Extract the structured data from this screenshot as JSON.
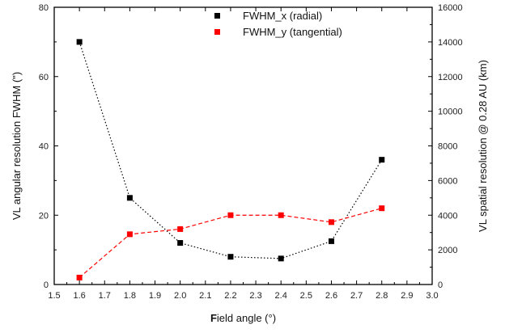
{
  "chart_data": {
    "type": "line",
    "xlabel": "Field angle (°)",
    "xlabel_parts": {
      "bold": "F",
      "rest": "ield angle (°)"
    },
    "ylabel_left": "VL angular resolution FWHM (\")",
    "ylabel_right": "VL spatial resolution @ 0.28 AU (km)",
    "xlim": [
      1.5,
      3.0
    ],
    "xticks": [
      "1.5",
      "1.6",
      "1.7",
      "1.8",
      "1.9",
      "2.0",
      "2.1",
      "2.2",
      "2.3",
      "2.4",
      "2.5",
      "2.6",
      "2.7",
      "2.8",
      "2.9",
      "3.0"
    ],
    "ylim_left": [
      0,
      80
    ],
    "yticks_left": [
      "0",
      "20",
      "40",
      "60",
      "80"
    ],
    "ylim_right": [
      0,
      16000
    ],
    "yticks_right": [
      "0",
      "2000",
      "4000",
      "6000",
      "8000",
      "10000",
      "12000",
      "14000",
      "16000"
    ],
    "grid": false,
    "legend_position": "top-center",
    "series": [
      {
        "name": "FWHM_x (radial)",
        "color": "#000000",
        "line_style": "dotted",
        "x": [
          1.6,
          1.8,
          2.0,
          2.2,
          2.4,
          2.6,
          2.8
        ],
        "y": [
          70,
          25,
          12,
          8,
          7.5,
          12.5,
          36
        ]
      },
      {
        "name": "FWHM_y (tangential)",
        "color": "#ff0000",
        "line_style": "dashed",
        "x": [
          1.6,
          1.8,
          2.0,
          2.2,
          2.4,
          2.6,
          2.8
        ],
        "y": [
          2,
          14.5,
          16,
          20,
          20,
          18,
          22
        ]
      }
    ]
  }
}
